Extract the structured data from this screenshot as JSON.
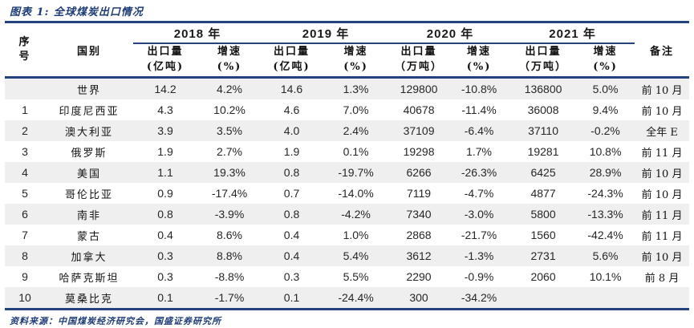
{
  "figure": {
    "title": "图表 1: 全球煤炭出口情况",
    "source": "资料来源：中国煤炭经济研究会，国盛证券研究所"
  },
  "colors": {
    "accent_navy": "#24437E",
    "title_text": "#1E3C78",
    "stripe_gray": "#EFEFEF",
    "body_text": "#262626"
  },
  "table": {
    "columns": {
      "index": "序\n号",
      "country": "国别",
      "note": "备注",
      "groups": [
        {
          "year": "2018 年",
          "export": "出口量\n(亿吨)",
          "growth": "增速\n(%)"
        },
        {
          "year": "2019 年",
          "export": "出口量\n(亿吨)",
          "growth": "增速\n(%)"
        },
        {
          "year": "2020 年",
          "export": "出口量\n（万吨）",
          "growth": "增速\n(%)"
        },
        {
          "year": "2021 年",
          "export": "出口量\n（万吨）",
          "growth": "增速\n(%)"
        }
      ]
    },
    "rows": [
      {
        "index": "",
        "country": "世界",
        "values": [
          "14.2",
          "4.2%",
          "14.6",
          "1.3%",
          "129800",
          "-10.8%",
          "136800",
          "5.0%"
        ],
        "note": "前 10 月"
      },
      {
        "index": "1",
        "country": "印度尼西亚",
        "values": [
          "4.3",
          "10.2%",
          "4.6",
          "7.0%",
          "40678",
          "-11.4%",
          "36008",
          "9.4%"
        ],
        "note": "前 10 月"
      },
      {
        "index": "2",
        "country": "澳大利亚",
        "values": [
          "3.9",
          "3.5%",
          "4.0",
          "2.4%",
          "37109",
          "-6.4%",
          "37110",
          "-0.2%"
        ],
        "note": "全年 E"
      },
      {
        "index": "3",
        "country": "俄罗斯",
        "values": [
          "1.9",
          "2.7%",
          "1.9",
          "0.1%",
          "19298",
          "1.7%",
          "19281",
          "10.8%"
        ],
        "note": "前 11 月"
      },
      {
        "index": "4",
        "country": "美国",
        "values": [
          "1.1",
          "19.3%",
          "0.8",
          "-19.7%",
          "6266",
          "-26.3%",
          "6425",
          "28.9%"
        ],
        "note": "前 10 月"
      },
      {
        "index": "5",
        "country": "哥伦比亚",
        "values": [
          "0.9",
          "-17.4%",
          "0.7",
          "-14.0%",
          "7119",
          "-4.7%",
          "4877",
          "-24.3%"
        ],
        "note": "前 10 月"
      },
      {
        "index": "6",
        "country": "南非",
        "values": [
          "0.8",
          "-3.9%",
          "0.8",
          "-4.2%",
          "7340",
          "-3.0%",
          "5800",
          "-13.3%"
        ],
        "note": "前 11 月"
      },
      {
        "index": "7",
        "country": "蒙古",
        "values": [
          "0.4",
          "8.6%",
          "0.4",
          "1.0%",
          "2868",
          "-21.7%",
          "1560",
          "-42.4%"
        ],
        "note": "前 11 月"
      },
      {
        "index": "8",
        "country": "加拿大",
        "values": [
          "0.3",
          "8.8%",
          "0.4",
          "5.4%",
          "3612",
          "-1.3%",
          "2731",
          "5.6%"
        ],
        "note": "前 10 月"
      },
      {
        "index": "9",
        "country": "哈萨克斯坦",
        "values": [
          "0.3",
          "-8.8%",
          "0.3",
          "5.5%",
          "2290",
          "-0.9%",
          "2060",
          "10.1%"
        ],
        "note": "前 8 月"
      },
      {
        "index": "10",
        "country": "莫桑比克",
        "values": [
          "0.1",
          "-1.7%",
          "0.1",
          "-24.4%",
          "300",
          "-34.2%",
          "",
          ""
        ],
        "note": ""
      }
    ]
  }
}
